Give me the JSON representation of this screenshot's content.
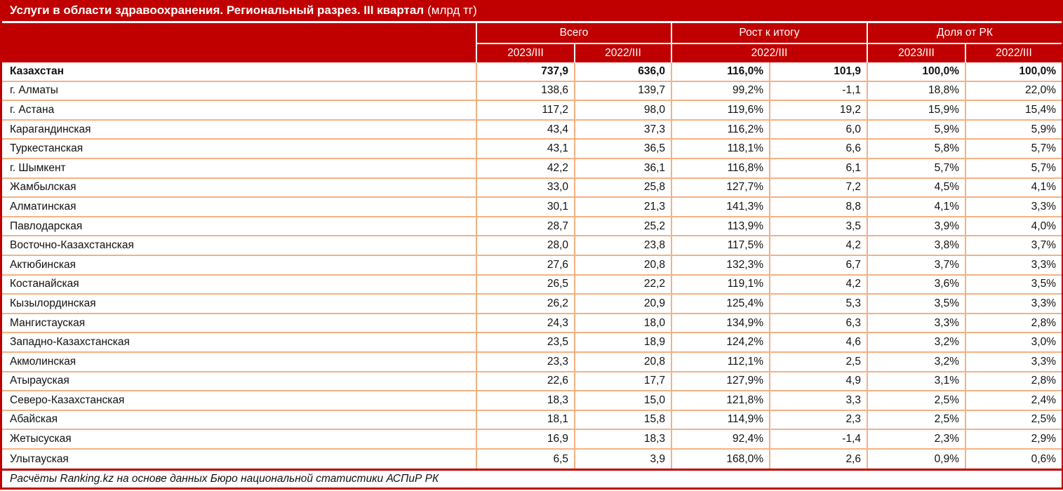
{
  "title": {
    "main": "Услуги в области здравоохранения. Региональный разрез. III квартал",
    "unit": "(млрд тг)"
  },
  "chart_data": {
    "type": "table",
    "title": "Услуги в области здравоохранения. Региональный разрез. III квартал (млрд тг)",
    "column_groups": [
      {
        "label": "Всего",
        "columns": [
          "2023/III",
          "2022/III"
        ]
      },
      {
        "label": "Рост к итогу",
        "columns": [
          "2022/III"
        ],
        "colspan": 2
      },
      {
        "label": "Доля от РК",
        "columns": [
          "2023/III",
          "2022/III"
        ]
      }
    ],
    "rows": [
      {
        "region": "Казахстан",
        "bold": true,
        "values": [
          "737,9",
          "636,0",
          "116,0%",
          "101,9",
          "100,0%",
          "100,0%"
        ]
      },
      {
        "region": "г. Алматы",
        "bold": false,
        "values": [
          "138,6",
          "139,7",
          "99,2%",
          "-1,1",
          "18,8%",
          "22,0%"
        ]
      },
      {
        "region": "г. Астана",
        "bold": false,
        "values": [
          "117,2",
          "98,0",
          "119,6%",
          "19,2",
          "15,9%",
          "15,4%"
        ]
      },
      {
        "region": "Карагандинская",
        "bold": false,
        "values": [
          "43,4",
          "37,3",
          "116,2%",
          "6,0",
          "5,9%",
          "5,9%"
        ]
      },
      {
        "region": "Туркестанская",
        "bold": false,
        "values": [
          "43,1",
          "36,5",
          "118,1%",
          "6,6",
          "5,8%",
          "5,7%"
        ]
      },
      {
        "region": "г. Шымкент",
        "bold": false,
        "values": [
          "42,2",
          "36,1",
          "116,8%",
          "6,1",
          "5,7%",
          "5,7%"
        ]
      },
      {
        "region": "Жамбылская",
        "bold": false,
        "values": [
          "33,0",
          "25,8",
          "127,7%",
          "7,2",
          "4,5%",
          "4,1%"
        ]
      },
      {
        "region": "Алматинская",
        "bold": false,
        "values": [
          "30,1",
          "21,3",
          "141,3%",
          "8,8",
          "4,1%",
          "3,3%"
        ]
      },
      {
        "region": "Павлодарская",
        "bold": false,
        "values": [
          "28,7",
          "25,2",
          "113,9%",
          "3,5",
          "3,9%",
          "4,0%"
        ]
      },
      {
        "region": "Восточно-Казахстанская",
        "bold": false,
        "values": [
          "28,0",
          "23,8",
          "117,5%",
          "4,2",
          "3,8%",
          "3,7%"
        ]
      },
      {
        "region": "Актюбинская",
        "bold": false,
        "values": [
          "27,6",
          "20,8",
          "132,3%",
          "6,7",
          "3,7%",
          "3,3%"
        ]
      },
      {
        "region": "Костанайская",
        "bold": false,
        "values": [
          "26,5",
          "22,2",
          "119,1%",
          "4,2",
          "3,6%",
          "3,5%"
        ]
      },
      {
        "region": "Кызылординская",
        "bold": false,
        "values": [
          "26,2",
          "20,9",
          "125,4%",
          "5,3",
          "3,5%",
          "3,3%"
        ]
      },
      {
        "region": "Мангистауская",
        "bold": false,
        "values": [
          "24,3",
          "18,0",
          "134,9%",
          "6,3",
          "3,3%",
          "2,8%"
        ]
      },
      {
        "region": "Западно-Казахстанская",
        "bold": false,
        "values": [
          "23,5",
          "18,9",
          "124,2%",
          "4,6",
          "3,2%",
          "3,0%"
        ]
      },
      {
        "region": "Акмолинская",
        "bold": false,
        "values": [
          "23,3",
          "20,8",
          "112,1%",
          "2,5",
          "3,2%",
          "3,3%"
        ]
      },
      {
        "region": "Атырауская",
        "bold": false,
        "values": [
          "22,6",
          "17,7",
          "127,9%",
          "4,9",
          "3,1%",
          "2,8%"
        ]
      },
      {
        "region": "Северо-Казахстанская",
        "bold": false,
        "values": [
          "18,3",
          "15,0",
          "121,8%",
          "3,3",
          "2,5%",
          "2,4%"
        ]
      },
      {
        "region": "Абайская",
        "bold": false,
        "values": [
          "18,1",
          "15,8",
          "114,9%",
          "2,3",
          "2,5%",
          "2,5%"
        ]
      },
      {
        "region": "Жетысуская",
        "bold": false,
        "values": [
          "16,9",
          "18,3",
          "92,4%",
          "-1,4",
          "2,3%",
          "2,9%"
        ]
      },
      {
        "region": "Улытауская",
        "bold": false,
        "values": [
          "6,5",
          "3,9",
          "168,0%",
          "2,6",
          "0,9%",
          "0,6%"
        ]
      }
    ]
  },
  "footer": {
    "source_note": "Расчёты Ranking.kz на основе данных Бюро национальной статистики АСПиР РК"
  },
  "colors": {
    "header_bg": "#C00000",
    "grid_border": "#F4B183",
    "header_divider": "#FFFFFF"
  }
}
